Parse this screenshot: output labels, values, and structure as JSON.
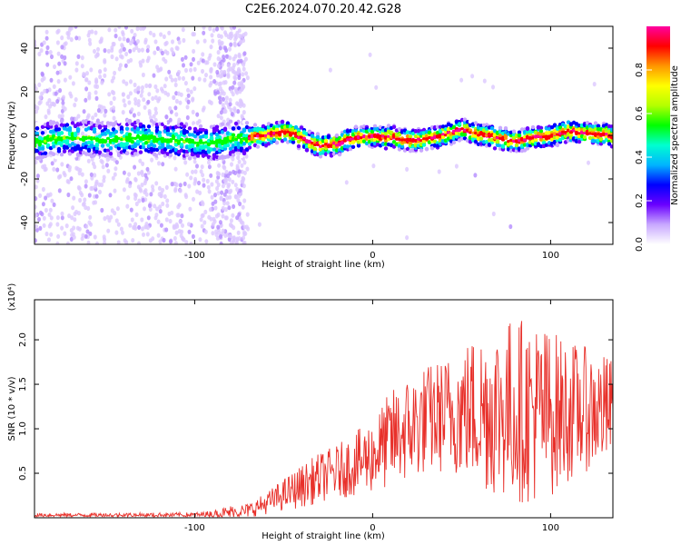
{
  "title": "C2E6.2024.070.20.42.G28",
  "colors": {
    "snr_line": "#e8302a",
    "colorbar": [
      "#ffffff",
      "#c8a8ff",
      "#6a00ff",
      "#0000ff",
      "#00b4ff",
      "#00ffd0",
      "#00ff00",
      "#b4ff00",
      "#ffff00",
      "#ff9600",
      "#ff0000",
      "#ff00a0"
    ]
  },
  "chart_data": [
    {
      "type": "heatmap",
      "title": "C2E6.2024.070.20.42.G28",
      "xlabel": "Height of straight line (km)",
      "ylabel": "Frequency (Hz)",
      "xlim": [
        -190,
        135
      ],
      "ylim": [
        -50,
        50
      ],
      "x_ticks": [
        -100,
        0,
        100
      ],
      "y_ticks": [
        -40,
        -20,
        0,
        20,
        40
      ],
      "colorbar": {
        "label": "Normalized spectral amplitude",
        "range": [
          0.0,
          1.0
        ],
        "ticks": [
          0.0,
          0.2,
          0.4,
          0.6,
          0.8
        ]
      },
      "ridge_frequency_hz": {
        "x": [
          -190,
          -170,
          -150,
          -130,
          -110,
          -100,
          -90,
          -80,
          -70,
          -60,
          -50,
          -40,
          -30,
          -20,
          -10,
          0,
          10,
          20,
          30,
          40,
          50,
          60,
          70,
          80,
          90,
          100,
          110,
          120,
          135
        ],
        "y": [
          -3,
          -1,
          -2,
          -1,
          -2,
          -3,
          -4,
          -2,
          -1,
          0,
          2,
          -1,
          -5,
          -4,
          -1,
          0,
          -1,
          -2,
          -2,
          0,
          3,
          0,
          -1,
          -3,
          -1,
          0,
          2,
          1,
          0
        ]
      }
    },
    {
      "type": "line",
      "xlabel": "Height of straight line (km)",
      "ylabel": "SNR (10 * v/v)",
      "y_multiplier": "(x10⁴)",
      "xlim": [
        -190,
        135
      ],
      "ylim": [
        0,
        2.45
      ],
      "x_ticks": [
        -100,
        0,
        100
      ],
      "y_ticks": [
        0.5,
        1.0,
        1.5,
        2.0
      ],
      "series": [
        {
          "envelope_x": [
            -190,
            -100,
            -90,
            -80,
            -70,
            -60,
            -50,
            -40,
            -30,
            -20,
            -10,
            0,
            10,
            20,
            30,
            40,
            50,
            60,
            70,
            80,
            90,
            100,
            110,
            120,
            135
          ],
          "envelope_mean": [
            0.03,
            0.03,
            0.04,
            0.06,
            0.08,
            0.16,
            0.26,
            0.35,
            0.45,
            0.52,
            0.6,
            0.7,
            0.88,
            1.0,
            1.1,
            1.15,
            1.2,
            1.22,
            1.22,
            1.22,
            1.2,
            1.18,
            1.2,
            1.22,
            1.2
          ],
          "envelope_spread": [
            0.02,
            0.03,
            0.04,
            0.08,
            0.08,
            0.12,
            0.18,
            0.24,
            0.28,
            0.3,
            0.36,
            0.42,
            0.55,
            0.6,
            0.62,
            0.65,
            0.75,
            0.9,
            1.0,
            1.05,
            1.05,
            0.95,
            0.8,
            0.7,
            0.6
          ]
        }
      ]
    }
  ]
}
